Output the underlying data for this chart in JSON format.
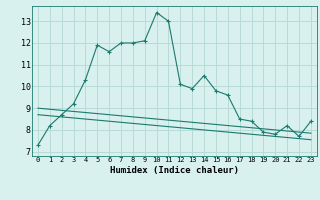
{
  "x": [
    0,
    1,
    2,
    3,
    4,
    5,
    6,
    7,
    8,
    9,
    10,
    11,
    12,
    13,
    14,
    15,
    16,
    17,
    18,
    19,
    20,
    21,
    22,
    23
  ],
  "line1": [
    7.3,
    8.2,
    8.7,
    9.2,
    10.3,
    11.9,
    11.6,
    12.0,
    12.0,
    12.1,
    13.4,
    13.0,
    10.1,
    9.9,
    10.5,
    9.8,
    9.6,
    8.5,
    8.4,
    7.9,
    7.8,
    8.2,
    7.7,
    8.4
  ],
  "line2": [
    8.7,
    8.65,
    8.6,
    8.55,
    8.5,
    8.45,
    8.4,
    8.35,
    8.3,
    8.25,
    8.2,
    8.15,
    8.1,
    8.05,
    8.0,
    7.95,
    7.9,
    7.85,
    7.8,
    7.75,
    7.7,
    7.65,
    7.6,
    7.55
  ],
  "line3": [
    9.0,
    8.95,
    8.9,
    8.85,
    8.8,
    8.75,
    8.7,
    8.65,
    8.6,
    8.55,
    8.5,
    8.45,
    8.4,
    8.35,
    8.3,
    8.25,
    8.2,
    8.15,
    8.1,
    8.05,
    8.0,
    7.95,
    7.9,
    7.85
  ],
  "line_color": "#1a7a6e",
  "background_color": "#d8f0ee",
  "grid_color": "#b8dbd8",
  "xlabel": "Humidex (Indice chaleur)",
  "yticks": [
    7,
    8,
    9,
    10,
    11,
    12,
    13
  ],
  "xticks": [
    0,
    1,
    2,
    3,
    4,
    5,
    6,
    7,
    8,
    9,
    10,
    11,
    12,
    13,
    14,
    15,
    16,
    17,
    18,
    19,
    20,
    21,
    22,
    23
  ],
  "ylim": [
    6.8,
    13.7
  ],
  "xlim": [
    -0.5,
    23.5
  ],
  "xlabel_fontsize": 6.5,
  "xtick_fontsize": 5.0,
  "ytick_fontsize": 6.0
}
